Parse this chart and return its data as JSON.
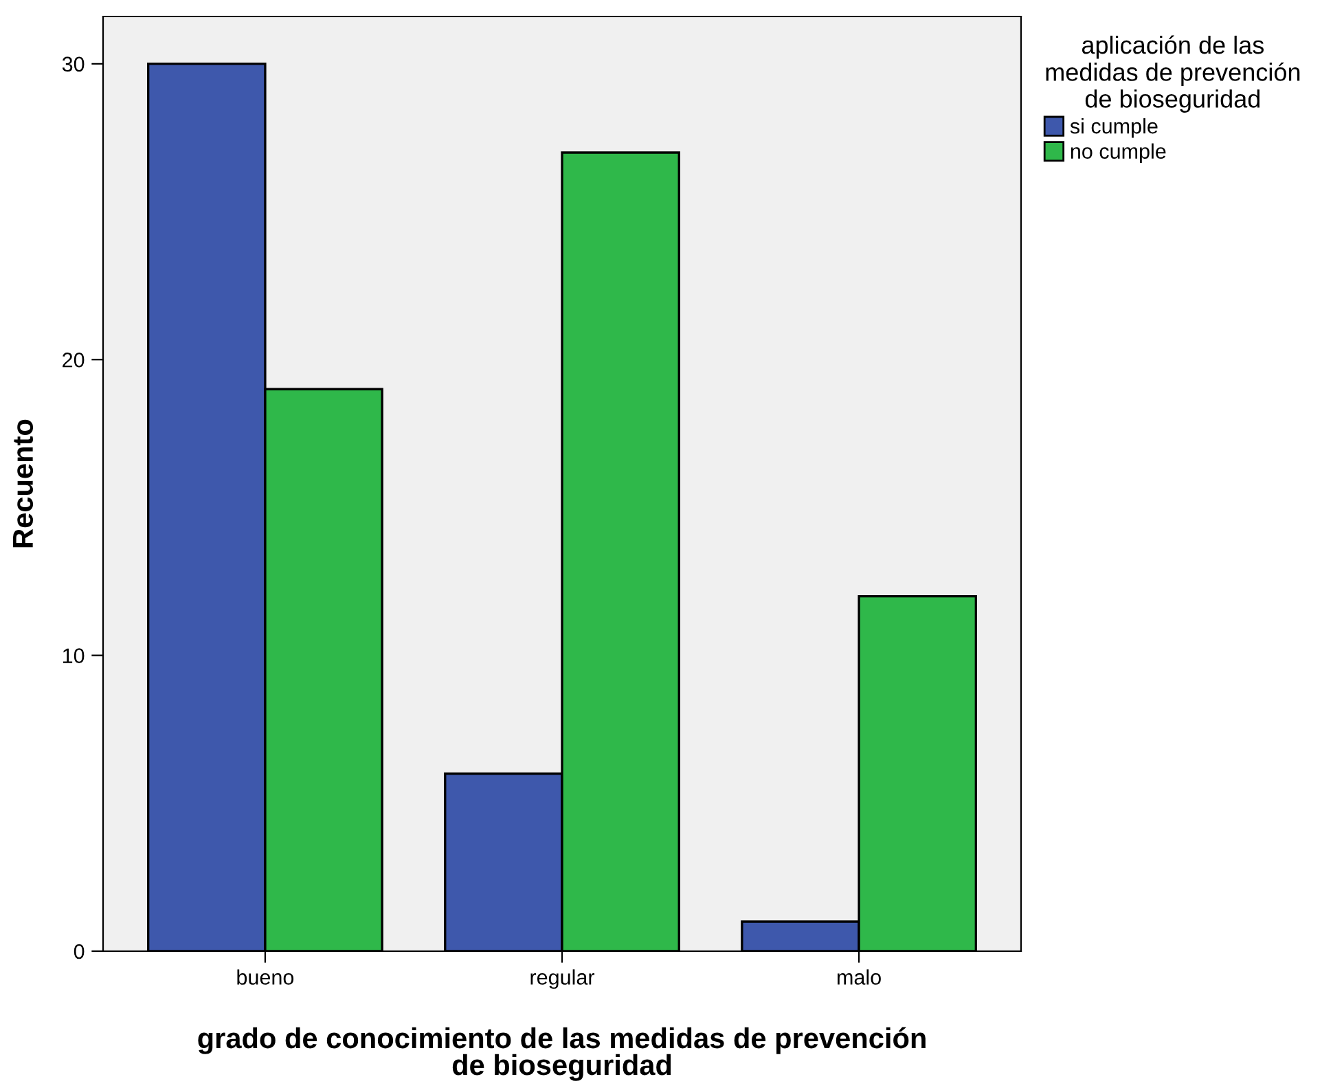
{
  "chart_data": {
    "type": "bar",
    "xlabel": "grado de conocimiento de las medidas de prevención\nde bioseguridad",
    "ylabel": "Recuento",
    "legend_title": "aplicación de las\nmedidas de prevención\nde bioseguridad",
    "categories": [
      "bueno",
      "regular",
      "malo"
    ],
    "series": [
      {
        "name": "si cumple",
        "color": "#3e58ac",
        "values": [
          30,
          6,
          1
        ]
      },
      {
        "name": "no cumple",
        "color": "#2fb84a",
        "values": [
          19,
          27,
          12
        ]
      }
    ],
    "ylim": [
      0,
      31.6
    ],
    "yticks": [
      0,
      10,
      20,
      30
    ],
    "grid": false,
    "legend": "top right"
  }
}
